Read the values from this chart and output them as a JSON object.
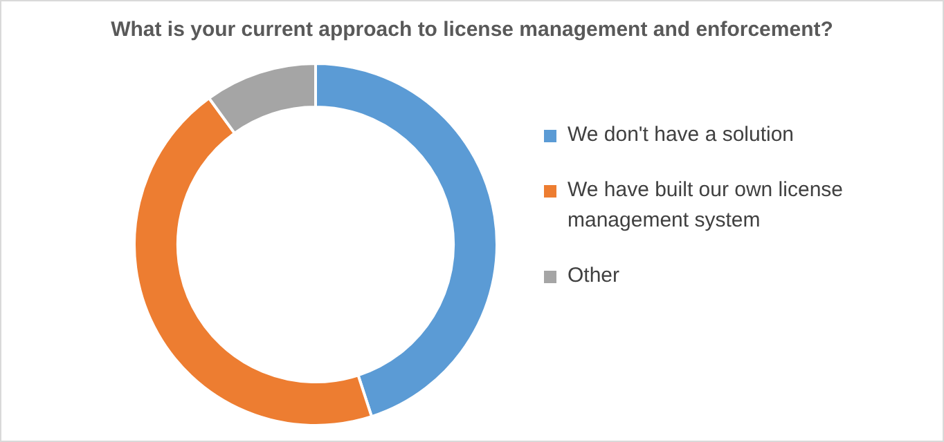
{
  "chart_data": {
    "type": "donut",
    "title": "What is your current approach to license management and enforcement?",
    "categories": [
      "We don't have a solution",
      "We have built our own license management system",
      "Other"
    ],
    "values": [
      45,
      45,
      10
    ],
    "colors": [
      "#5b9bd5",
      "#ed7d31",
      "#a5a5a5"
    ],
    "legend": "right"
  }
}
